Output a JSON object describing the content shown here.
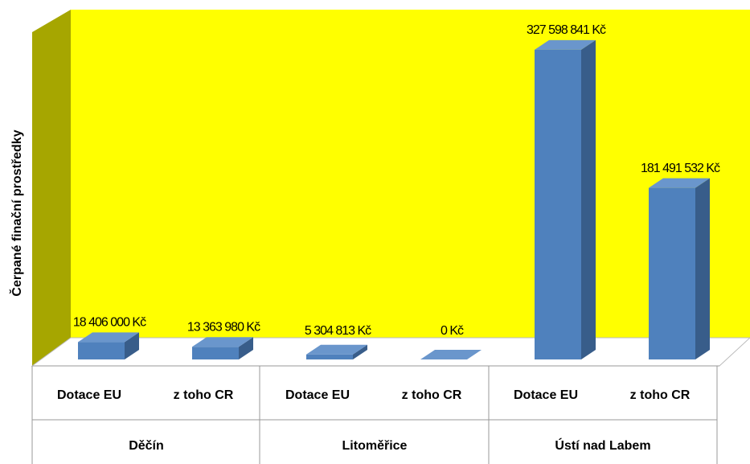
{
  "chart_data": {
    "type": "bar3d",
    "ylabel": "Čerpané finační prostředky",
    "categories": [
      "Dotace EU",
      "z toho CR",
      "Dotace EU",
      "z toho CR",
      "Dotace EU",
      "z toho CR"
    ],
    "groups": [
      "Děčín",
      "Litoměřice",
      "Ústí nad Labem"
    ],
    "values": [
      18406000,
      13363980,
      5304813,
      0,
      327598841,
      181491532
    ],
    "value_labels": [
      "18 406 000 Kč",
      "13 363 980 Kč",
      "5 304 813 Kč",
      "0 Kč",
      "327 598 841 Kč",
      "181 491 532 Kč"
    ],
    "ylim": [
      0,
      370000000
    ],
    "color": "#4f81bd",
    "wall_color": "#ffff00",
    "side_wall_color": "#a6a600"
  }
}
